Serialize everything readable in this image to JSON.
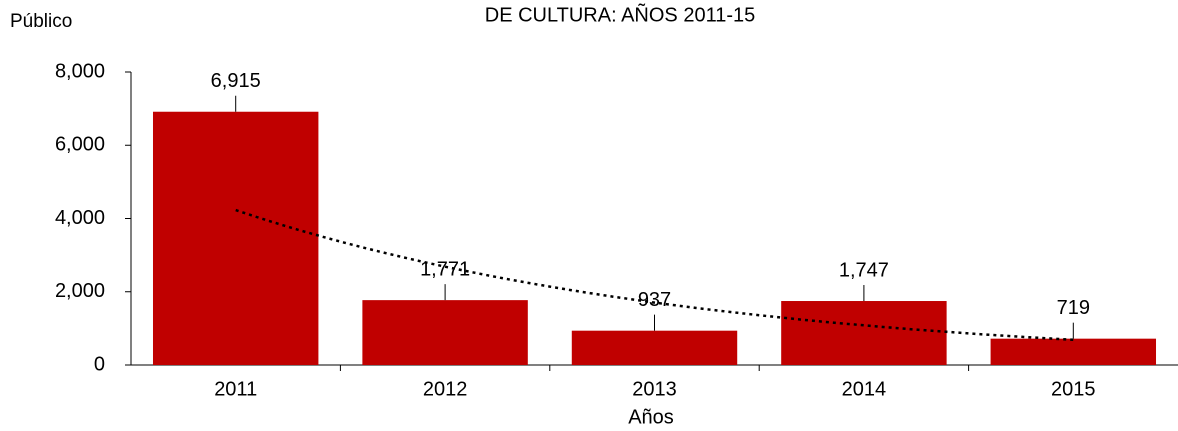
{
  "chart_data": {
    "type": "bar",
    "title": "DE CULTURA:  AÑOS 2011-15",
    "y_label": "Público",
    "x_label": "Años",
    "categories": [
      "2011",
      "2012",
      "2013",
      "2014",
      "2015"
    ],
    "values": [
      6915,
      1771,
      937,
      1747,
      719
    ],
    "value_labels": [
      "6,915",
      "1,771",
      "937",
      "1,747",
      "719"
    ],
    "color": "#c00000",
    "ylim": [
      0,
      8000
    ],
    "yticks": [
      0,
      {
        "value": 2000,
        "label": "2,000"
      },
      {
        "value": 4000,
        "label": "4,000"
      },
      {
        "value": 6000,
        "label": "6,000"
      },
      {
        "value": 8000,
        "label": "8,000"
      }
    ],
    "grid": false,
    "trendline": "exponential"
  }
}
